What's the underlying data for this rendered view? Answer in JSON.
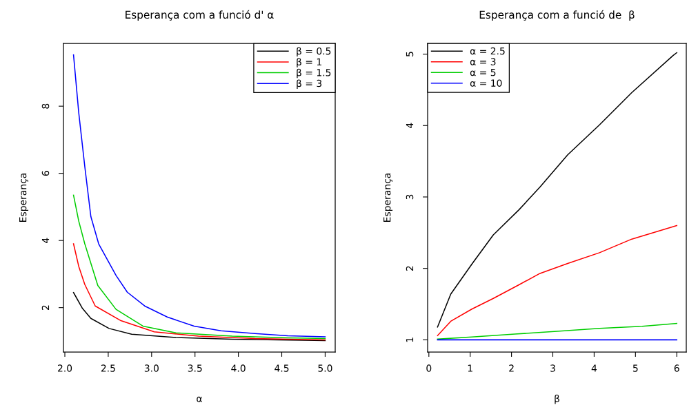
{
  "chart_data": [
    {
      "type": "line",
      "title": "Esperança com a funció d' α",
      "xlabel": "α",
      "ylabel": "Esperança",
      "xlim": [
        1.984,
        5.116
      ],
      "xticks": [
        {
          "value": 2.0,
          "label": "2.0"
        },
        2.5,
        {
          "value": 3.0,
          "label": "3.0"
        },
        3.5,
        {
          "value": 4.0,
          "label": "4.0"
        },
        4.5,
        {
          "value": 5.0,
          "label": "5.0"
        }
      ],
      "ylim": [
        0.68,
        9.87
      ],
      "yticks": [
        2,
        4,
        6,
        8
      ],
      "grid": false,
      "legend": "top right",
      "marker": "none",
      "line_style": "solid",
      "series": [
        {
          "name": "β = 0.5",
          "color": "#000000",
          "x": [
            2.1,
            2.2,
            2.3,
            2.51,
            2.77,
            3.28,
            3.93,
            5.0
          ],
          "values": [
            2.45,
            1.99,
            1.68,
            1.38,
            1.21,
            1.11,
            1.06,
            1.02
          ]
        },
        {
          "name": "β = 1",
          "color": "#ff0000",
          "x": [
            2.1,
            2.16,
            2.23,
            2.35,
            2.64,
            3.03,
            3.54,
            4.19,
            5.0
          ],
          "values": [
            3.9,
            3.23,
            2.69,
            2.05,
            1.62,
            1.28,
            1.15,
            1.08,
            1.04
          ]
        },
        {
          "name": "β = 1.5",
          "color": "#00cd00",
          "x": [
            2.1,
            2.16,
            2.23,
            2.38,
            2.59,
            2.9,
            3.28,
            3.93,
            4.57,
            5.0
          ],
          "values": [
            5.35,
            4.58,
            3.9,
            2.66,
            1.95,
            1.45,
            1.25,
            1.15,
            1.1,
            1.08
          ]
        },
        {
          "name": "β = 3",
          "color": "#0000ff",
          "x": [
            2.1,
            2.16,
            2.23,
            2.3,
            2.39,
            2.59,
            2.72,
            2.92,
            3.18,
            3.49,
            3.8,
            4.19,
            4.57,
            5.0
          ],
          "values": [
            9.53,
            7.81,
            6.2,
            4.71,
            3.9,
            2.96,
            2.46,
            2.05,
            1.72,
            1.45,
            1.31,
            1.23,
            1.16,
            1.13
          ]
        }
      ]
    },
    {
      "type": "line",
      "title": "Esperança com a funció de  β",
      "xlabel": "β",
      "ylabel": "Esperança",
      "xlim": [
        -0.03,
        6.23
      ],
      "xticks": [
        0,
        1,
        2,
        3,
        4,
        5,
        6
      ],
      "ylim": [
        0.83,
        5.15
      ],
      "yticks": [
        1,
        2,
        3,
        4,
        5
      ],
      "grid": false,
      "legend": "top left",
      "marker": "none",
      "line_style": "solid",
      "series": [
        {
          "name": "α = 2.5",
          "color": "#000000",
          "x": [
            0.21,
            0.53,
            1.04,
            1.56,
            2.18,
            2.69,
            3.36,
            4.13,
            4.91,
            5.91,
            6.0
          ],
          "values": [
            1.18,
            1.64,
            2.06,
            2.47,
            2.82,
            3.14,
            3.59,
            4.01,
            4.46,
            4.98,
            5.02
          ]
        },
        {
          "name": "α = 3",
          "color": "#ff0000",
          "x": [
            0.21,
            0.53,
            1.04,
            1.56,
            2.18,
            2.69,
            3.36,
            4.13,
            4.91,
            6.0
          ],
          "values": [
            1.06,
            1.26,
            1.43,
            1.58,
            1.77,
            1.93,
            2.07,
            2.22,
            2.41,
            2.6
          ]
        },
        {
          "name": "α = 5",
          "color": "#00cd00",
          "x": [
            0.21,
            1.04,
            2.08,
            3.1,
            4.13,
            5.16,
            6.0
          ],
          "values": [
            1.01,
            1.04,
            1.08,
            1.12,
            1.16,
            1.19,
            1.23
          ]
        },
        {
          "name": "α = 10",
          "color": "#0000ff",
          "x": [
            0.21,
            6.0
          ],
          "values": [
            1.0,
            1.0
          ]
        }
      ]
    }
  ]
}
